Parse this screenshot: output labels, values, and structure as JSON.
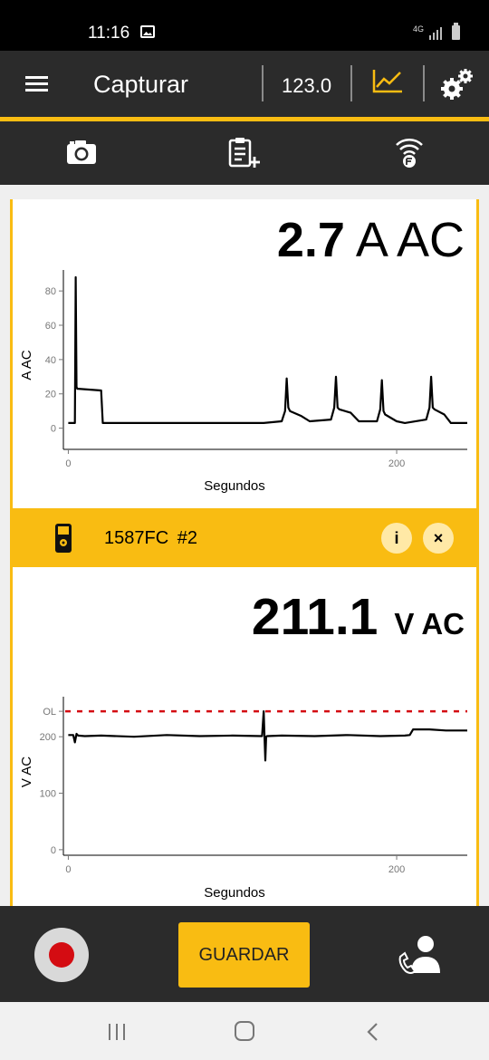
{
  "status_bar": {
    "time": "11:16",
    "network": "4G",
    "icons": [
      "gallery-icon",
      "signal-icon",
      "battery-icon"
    ]
  },
  "app_bar": {
    "title": "Capturar",
    "value": "123.0",
    "icons": [
      "menu-icon",
      "trend-chart-icon",
      "settings-icon"
    ],
    "accent_color": "#f9bc12",
    "background_color": "#2b2b2b"
  },
  "toolbar": {
    "icons": [
      "camera-icon",
      "clipboard-add-icon",
      "wireless-connection-icon"
    ]
  },
  "card1": {
    "reading_value": "2.7",
    "reading_unit": "A AC"
  },
  "device": {
    "name": "1587FC  #2",
    "info_label": "i",
    "close_label": "×",
    "icons": [
      "multimeter-icon",
      "info-icon",
      "close-icon"
    ]
  },
  "card2": {
    "reading_value": "211.1",
    "reading_unit": "V AC"
  },
  "bottom_bar": {
    "save_label": "GUARDAR",
    "icons": [
      "record-icon",
      "share-contact-icon"
    ],
    "record_color": "#d40c12"
  },
  "nav_bar": {
    "icons": [
      "recent-apps-icon",
      "home-icon",
      "back-icon"
    ]
  },
  "chart_data": [
    {
      "type": "line",
      "title": "",
      "xlabel": "Segundos",
      "ylabel": "A AC",
      "xlim": [
        -3,
        243
      ],
      "ylim": [
        -15,
        88
      ],
      "x_ticks": [
        0,
        200
      ],
      "y_ticks": [
        0,
        20,
        40,
        60,
        80
      ],
      "grid": false,
      "series": [
        {
          "color": "#000000",
          "x": [
            0,
            4,
            4.5,
            5,
            5.5,
            6,
            20,
            21,
            22,
            115,
            119,
            130,
            132,
            133,
            134,
            135,
            142,
            147,
            160,
            162,
            163,
            164,
            165,
            172,
            177,
            188,
            190,
            191,
            192,
            193,
            200,
            205,
            218,
            220,
            221,
            222,
            223,
            229,
            233,
            243
          ],
          "y": [
            3,
            3,
            88,
            24,
            23,
            23,
            22,
            3,
            3,
            3,
            3,
            4,
            10,
            29,
            12,
            10,
            7,
            4,
            5,
            12,
            30,
            12,
            11,
            9,
            4,
            4,
            11,
            28,
            10,
            8,
            4,
            3,
            5,
            12,
            30,
            12,
            11,
            8,
            3,
            3
          ]
        }
      ]
    },
    {
      "type": "line",
      "title": "",
      "xlabel": "Segundos",
      "ylabel": "V AC",
      "xlim": [
        -3,
        243
      ],
      "ylim": [
        -5,
        258
      ],
      "x_ticks": [
        0,
        200
      ],
      "y_ticks": [
        0,
        100,
        200
      ],
      "y_tick_labels": [
        "0",
        "100",
        "200",
        "OL"
      ],
      "overload_line": {
        "label": "OL",
        "y": 245,
        "color": "#d40c12",
        "style": "dashed"
      },
      "grid": false,
      "series": [
        {
          "color": "#000000",
          "x": [
            0,
            3,
            4,
            5,
            6,
            10,
            20,
            40,
            60,
            80,
            100,
            118,
            119,
            119.5,
            120,
            120.5,
            121,
            130,
            150,
            170,
            190,
            205,
            208,
            210,
            220,
            230,
            243
          ],
          "y": [
            203,
            203,
            190,
            205,
            202,
            201,
            202,
            200,
            203,
            201,
            202,
            201,
            245,
            200,
            158,
            200,
            201,
            202,
            201,
            203,
            201,
            202,
            203,
            213,
            213,
            211,
            211
          ]
        }
      ]
    }
  ]
}
